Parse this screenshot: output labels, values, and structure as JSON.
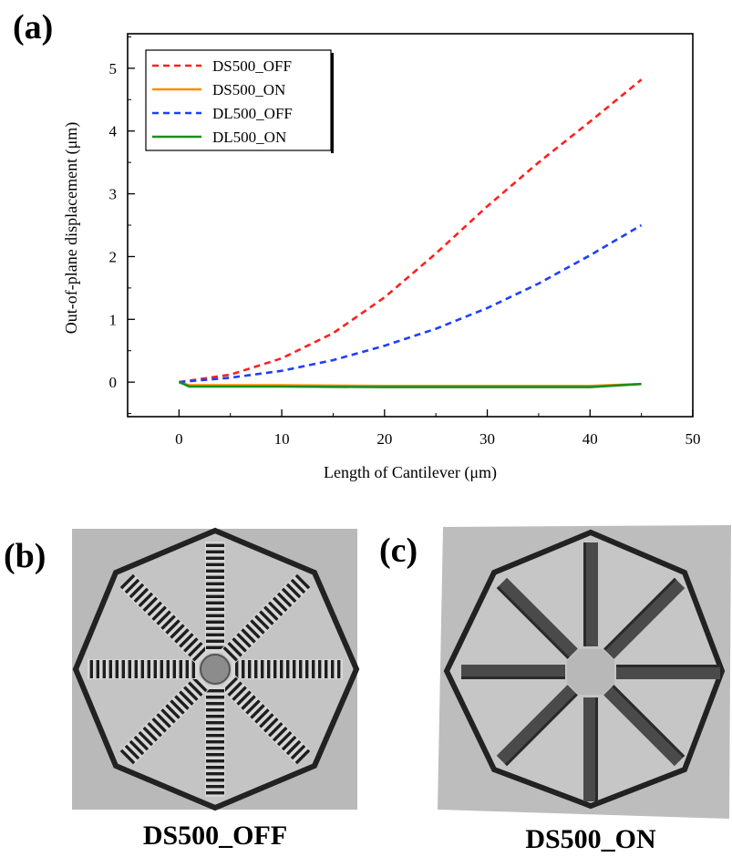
{
  "panels": {
    "a_label": "(a)",
    "b_label": "(b)",
    "c_label": "(c)",
    "b_caption": "DS500_OFF",
    "c_caption": "DS500_ON"
  },
  "chart_data": {
    "type": "line",
    "title": "",
    "xlabel": "Length of Cantilever (μm)",
    "ylabel": "Out-of-plane displacement (μm)",
    "xlim": [
      -5,
      50
    ],
    "ylim": [
      -0.55,
      5.55
    ],
    "xticks": [
      0,
      10,
      20,
      30,
      40,
      50
    ],
    "yticks": [
      0,
      1,
      2,
      3,
      4,
      5
    ],
    "grid": false,
    "legend_position": "top-left",
    "series": [
      {
        "name": "DS500_OFF",
        "color": "#ff2020",
        "dash": "dashed",
        "x": [
          0,
          5,
          10,
          15,
          20,
          25,
          30,
          35,
          40,
          45
        ],
        "y": [
          0.0,
          0.12,
          0.38,
          0.78,
          1.35,
          2.05,
          2.8,
          3.5,
          4.15,
          4.82
        ]
      },
      {
        "name": "DS500_ON",
        "color": "#ff8c00",
        "dash": "solid",
        "x": [
          0,
          1,
          5,
          10,
          20,
          30,
          40,
          45
        ],
        "y": [
          0.0,
          -0.05,
          -0.05,
          -0.05,
          -0.06,
          -0.06,
          -0.06,
          -0.03
        ]
      },
      {
        "name": "DL500_OFF",
        "color": "#1f3fff",
        "dash": "dashed",
        "x": [
          0,
          5,
          10,
          15,
          20,
          25,
          30,
          35,
          40,
          45
        ],
        "y": [
          0.0,
          0.07,
          0.18,
          0.35,
          0.58,
          0.85,
          1.18,
          1.57,
          2.02,
          2.5
        ]
      },
      {
        "name": "DL500_ON",
        "color": "#1e8c1e",
        "dash": "solid",
        "x": [
          0,
          1,
          5,
          10,
          20,
          30,
          40,
          45
        ],
        "y": [
          0.0,
          -0.07,
          -0.07,
          -0.07,
          -0.08,
          -0.08,
          -0.08,
          -0.03
        ]
      }
    ]
  }
}
